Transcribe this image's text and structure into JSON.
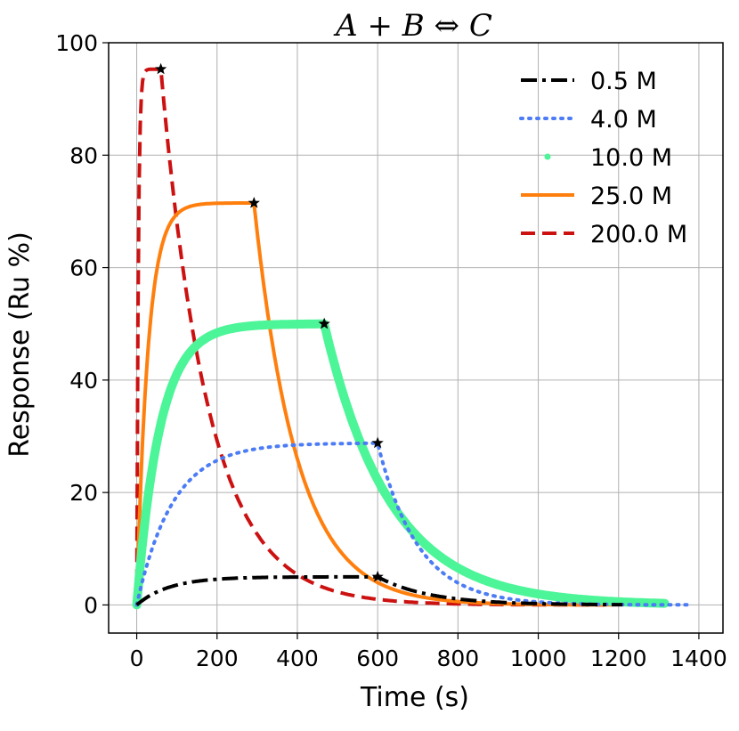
{
  "chart_data": {
    "type": "line",
    "title": "A + B ⇔ C",
    "xlabel": "Time (s)",
    "ylabel": "Response (Ru %)",
    "xlim": [
      -70,
      1460
    ],
    "ylim": [
      -5,
      100
    ],
    "xticks": [
      0,
      200,
      400,
      600,
      800,
      1000,
      1200,
      1400
    ],
    "yticks": [
      0,
      20,
      40,
      60,
      80,
      100
    ],
    "grid": true,
    "legend_position": "top-right",
    "series": [
      {
        "name": "0.5 M",
        "color": "#000000",
        "style": "dashdot",
        "association_end": 600,
        "end_time": 1210,
        "plateau": 5.0,
        "x": [
          0,
          50,
          100,
          150,
          200,
          250,
          300,
          350,
          400,
          450,
          500,
          550,
          600,
          650,
          700,
          750,
          800,
          850,
          900,
          1000,
          1100,
          1210
        ],
        "y": [
          0,
          2.3,
          3.5,
          4.2,
          4.6,
          4.8,
          4.9,
          4.95,
          5.0,
          5.0,
          5.0,
          5.0,
          5.0,
          3.4,
          2.1,
          1.3,
          0.8,
          0.5,
          0.3,
          0.1,
          0.05,
          0.0
        ]
      },
      {
        "name": "4.0 M",
        "color": "#4c7cf5",
        "style": "dotted",
        "association_end": 600,
        "end_time": 1380,
        "plateau": 28.8,
        "x": [
          0,
          25,
          50,
          100,
          150,
          200,
          250,
          300,
          350,
          400,
          450,
          500,
          550,
          600,
          650,
          700,
          750,
          800,
          850,
          900,
          1000,
          1100,
          1200,
          1300,
          1380
        ],
        "y": [
          0,
          7.0,
          12.5,
          19.5,
          23.8,
          26.2,
          27.5,
          28.2,
          28.5,
          28.7,
          28.8,
          28.8,
          28.8,
          28.8,
          17.5,
          10.6,
          6.4,
          3.9,
          2.4,
          1.4,
          0.5,
          0.2,
          0.1,
          0.0,
          0.0
        ]
      },
      {
        "name": "10.0 M",
        "color": "#4cf598",
        "style": "dots",
        "association_end": 467,
        "end_time": 1315,
        "plateau": 50.0,
        "x": [
          0,
          25,
          50,
          75,
          100,
          150,
          200,
          250,
          300,
          350,
          400,
          467,
          500,
          550,
          600,
          650,
          700,
          750,
          800,
          900,
          1000,
          1100,
          1200,
          1315
        ],
        "y": [
          0,
          17.5,
          28.5,
          35.5,
          40.0,
          45.2,
          47.7,
          48.9,
          49.5,
          49.8,
          49.9,
          50.0,
          40.9,
          29.9,
          18.3,
          11.1,
          6.7,
          4.1,
          2.5,
          0.9,
          0.3,
          0.1,
          0.0,
          0.0
        ]
      },
      {
        "name": "25.0 M",
        "color": "#ff7f0e",
        "style": "solid",
        "association_end": 292,
        "end_time": 1185,
        "plateau": 71.5,
        "x": [
          0,
          10,
          20,
          30,
          50,
          75,
          100,
          150,
          200,
          250,
          292,
          320,
          350,
          400,
          450,
          500,
          550,
          600,
          700,
          800,
          900,
          1000,
          1100,
          1185
        ],
        "y": [
          0,
          21.5,
          36.6,
          47.2,
          60.5,
          66.9,
          69.7,
          71.1,
          71.4,
          71.5,
          71.5,
          55.0,
          44.0,
          29.6,
          19.9,
          13.4,
          9.0,
          6.1,
          2.7,
          1.2,
          0.5,
          0.2,
          0.1,
          0.0
        ]
      },
      {
        "name": "200.0 M",
        "color": "#cc1111",
        "style": "dashed",
        "association_end": 60,
        "end_time": 1165,
        "plateau": 95.3,
        "x": [
          0,
          3,
          6,
          10,
          15,
          20,
          30,
          45,
          60,
          70,
          80,
          100,
          125,
          150,
          200,
          250,
          300,
          350,
          400,
          500,
          600,
          700,
          800,
          1000,
          1165
        ],
        "y": [
          0,
          51.5,
          75.2,
          87.5,
          92.7,
          94.3,
          95.1,
          95.3,
          95.3,
          87.6,
          80.5,
          68.0,
          54.6,
          44.2,
          29.0,
          19.0,
          12.4,
          8.1,
          5.3,
          2.3,
          1.0,
          0.4,
          0.2,
          0.0,
          0.0
        ]
      }
    ],
    "peak_markers": [
      {
        "series": "0.5 M",
        "x": 600,
        "y": 5.0
      },
      {
        "series": "4.0 M",
        "x": 600,
        "y": 28.8
      },
      {
        "series": "10.0 M",
        "x": 467,
        "y": 50.0
      },
      {
        "series": "25.0 M",
        "x": 292,
        "y": 71.5
      },
      {
        "series": "200.0 M",
        "x": 60,
        "y": 95.3
      }
    ]
  }
}
